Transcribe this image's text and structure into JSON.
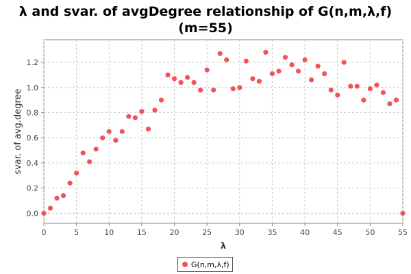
{
  "title_line1": "λ and svar. of avgDegree relationship of G(n,m,λ,f)",
  "title_line2": "(m=55)",
  "chart_data": {
    "type": "scatter",
    "xlabel": "λ",
    "ylabel": "svar. of avg.degree",
    "xlim": [
      0,
      55
    ],
    "ylim": [
      -0.08,
      1.38
    ],
    "x_ticks": [
      0,
      5,
      10,
      15,
      20,
      25,
      30,
      35,
      40,
      45,
      50,
      55
    ],
    "y_ticks": [
      0.0,
      0.2,
      0.4,
      0.6,
      0.8,
      1.0,
      1.2
    ],
    "y_tick_labels": [
      "0.0",
      "0.2",
      "0.4",
      "0.6",
      "0.8",
      "1.0",
      "1.2"
    ],
    "grid": true,
    "legend_position": "bottom-center",
    "series": [
      {
        "name": "G(n,m,λ,f)",
        "color": "#f2525a",
        "x": [
          0,
          1,
          2,
          3,
          4,
          5,
          6,
          7,
          8,
          9,
          10,
          11,
          12,
          13,
          14,
          15,
          16,
          17,
          18,
          19,
          20,
          21,
          22,
          23,
          24,
          25,
          26,
          27,
          28,
          29,
          30,
          31,
          32,
          33,
          34,
          35,
          36,
          37,
          38,
          39,
          40,
          41,
          42,
          43,
          44,
          45,
          46,
          47,
          48,
          49,
          50,
          51,
          52,
          53,
          54,
          55
        ],
        "y": [
          0.0,
          0.04,
          0.12,
          0.14,
          0.24,
          0.32,
          0.48,
          0.41,
          0.51,
          0.6,
          0.65,
          0.58,
          0.65,
          0.77,
          0.76,
          0.81,
          0.67,
          0.82,
          0.9,
          1.1,
          1.07,
          1.04,
          1.08,
          1.04,
          0.98,
          1.14,
          0.98,
          1.27,
          1.22,
          0.99,
          1.0,
          1.21,
          1.07,
          1.05,
          1.28,
          1.11,
          1.13,
          1.24,
          1.18,
          1.13,
          1.22,
          1.06,
          1.17,
          1.11,
          0.98,
          0.94,
          1.2,
          1.01,
          1.01,
          0.9,
          0.99,
          1.02,
          0.96,
          0.87,
          0.9,
          0.0
        ]
      }
    ]
  }
}
